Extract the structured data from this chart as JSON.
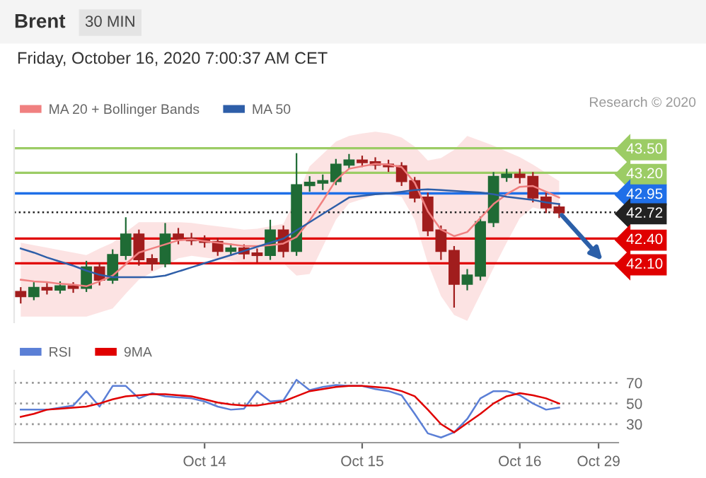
{
  "chart_data": [
    {
      "type": "candlestick",
      "title": "Brent",
      "subtitle": "30 MIN",
      "annotations": [
        "Friday, October 16, 2020 7:00:37 AM CET",
        "Research © 2020"
      ],
      "categories": [
        null,
        null,
        null,
        null,
        null,
        null,
        null,
        null,
        null,
        null,
        null,
        null,
        null,
        null,
        null,
        null,
        null,
        null,
        null,
        null,
        null,
        null,
        null,
        null,
        null,
        null,
        null,
        null,
        null,
        null,
        null,
        null,
        null,
        null,
        null,
        null,
        null,
        null,
        null,
        null,
        null,
        null,
        null,
        null,
        null,
        null
      ],
      "ohlc": [
        [
          41.75,
          41.8,
          41.62,
          41.7
        ],
        [
          41.7,
          41.86,
          41.66,
          41.8
        ],
        [
          41.8,
          41.85,
          41.73,
          41.78
        ],
        [
          41.78,
          41.87,
          41.74,
          41.82
        ],
        [
          41.82,
          41.86,
          41.75,
          41.8
        ],
        [
          41.8,
          42.12,
          41.76,
          42.05
        ],
        [
          42.05,
          42.1,
          41.84,
          41.9
        ],
        [
          41.9,
          42.26,
          41.86,
          42.2
        ],
        [
          42.2,
          42.65,
          42.15,
          42.45
        ],
        [
          42.45,
          42.5,
          42.08,
          42.15
        ],
        [
          42.15,
          42.2,
          42.02,
          42.1
        ],
        [
          42.1,
          42.58,
          42.06,
          42.45
        ],
        [
          42.45,
          42.52,
          42.34,
          42.4
        ],
        [
          42.4,
          42.46,
          42.33,
          42.38
        ],
        [
          42.38,
          42.43,
          42.3,
          42.36
        ],
        [
          42.36,
          42.4,
          42.2,
          42.25
        ],
        [
          42.25,
          42.33,
          42.2,
          42.28
        ],
        [
          42.28,
          42.32,
          42.16,
          42.22
        ],
        [
          42.22,
          42.27,
          42.12,
          42.2
        ],
        [
          42.2,
          42.62,
          42.15,
          42.5
        ],
        [
          42.5,
          42.55,
          42.18,
          42.25
        ],
        [
          42.25,
          43.43,
          42.2,
          43.05
        ],
        [
          43.05,
          43.15,
          42.98,
          43.08
        ],
        [
          43.08,
          43.17,
          43.0,
          43.1
        ],
        [
          43.1,
          43.36,
          43.06,
          43.3
        ],
        [
          43.3,
          43.42,
          43.26,
          43.35
        ],
        [
          43.35,
          43.4,
          43.28,
          43.33
        ],
        [
          43.33,
          43.38,
          43.25,
          43.3
        ],
        [
          43.3,
          43.35,
          43.22,
          43.28
        ],
        [
          43.28,
          43.32,
          43.05,
          43.1
        ],
        [
          43.1,
          43.14,
          42.85,
          42.9
        ],
        [
          42.9,
          42.95,
          42.44,
          42.5
        ],
        [
          42.5,
          42.55,
          42.15,
          42.25
        ],
        [
          42.25,
          42.3,
          41.57,
          41.85
        ],
        [
          41.85,
          42.02,
          41.78,
          41.95
        ],
        [
          41.95,
          42.66,
          41.9,
          42.6
        ],
        [
          42.6,
          43.2,
          42.55,
          43.15
        ],
        [
          43.15,
          43.24,
          43.1,
          43.18
        ],
        [
          43.18,
          43.24,
          43.08,
          43.15
        ],
        [
          43.15,
          43.2,
          42.85,
          42.9
        ],
        [
          42.9,
          42.95,
          42.72,
          42.78
        ],
        [
          42.78,
          42.82,
          42.66,
          42.72
        ],
        null,
        null,
        null,
        null
      ],
      "colors": [
        "#a11d1d",
        "#1f6b35",
        "#a11d1d",
        "#1f6b35",
        "#a11d1d",
        "#1f6b35",
        "#a11d1d",
        "#1f6b35",
        "#1f6b35",
        "#a11d1d",
        "#a11d1d",
        "#1f6b35",
        "#a11d1d",
        "#a11d1d",
        "#a11d1d",
        "#a11d1d",
        "#1f6b35",
        "#a11d1d",
        "#a11d1d",
        "#1f6b35",
        "#a11d1d",
        "#1f6b35",
        "#1f6b35",
        "#1f6b35",
        "#1f6b35",
        "#1f6b35",
        "#a11d1d",
        "#a11d1d",
        "#a11d1d",
        "#a11d1d",
        "#a11d1d",
        "#a11d1d",
        "#a11d1d",
        "#a11d1d",
        "#1f6b35",
        "#1f6b35",
        "#1f6b35",
        "#1f6b35",
        "#a11d1d",
        "#a11d1d",
        "#a11d1d",
        "#a11d1d",
        null,
        null,
        null,
        null
      ],
      "series": [
        {
          "type": "line",
          "name": "MA 20 + Bollinger Bands",
          "color": "#f08080",
          "values": [
            41.9,
            41.88,
            41.87,
            41.85,
            41.84,
            41.82,
            41.88,
            41.95,
            42.09,
            42.23,
            42.28,
            42.33,
            42.38,
            42.39,
            42.37,
            42.35,
            42.33,
            42.31,
            42.31,
            42.32,
            42.34,
            42.42,
            42.62,
            42.86,
            43.11,
            43.25,
            43.28,
            43.31,
            43.3,
            43.27,
            43.08,
            42.73,
            42.51,
            42.43,
            42.48,
            42.65,
            42.82,
            42.94,
            43.03,
            43.04,
            42.97,
            42.9,
            null,
            null,
            null,
            null
          ],
          "upper": [
            42.35,
            42.32,
            42.29,
            42.26,
            42.23,
            42.2,
            42.28,
            42.35,
            42.48,
            42.6,
            42.6,
            42.6,
            42.6,
            42.59,
            42.57,
            42.55,
            42.53,
            42.51,
            42.52,
            42.55,
            42.58,
            42.9,
            43.28,
            43.43,
            43.58,
            43.65,
            43.68,
            43.7,
            43.68,
            43.63,
            43.52,
            43.35,
            43.38,
            43.48,
            43.65,
            43.59,
            43.53,
            43.46,
            43.39,
            43.3,
            43.2,
            43.1,
            null,
            null,
            null,
            null
          ],
          "lower": [
            41.45,
            41.45,
            41.45,
            41.45,
            41.45,
            41.45,
            41.5,
            41.55,
            41.73,
            41.9,
            41.99,
            42.07,
            42.16,
            42.19,
            42.17,
            42.15,
            42.13,
            42.11,
            42.1,
            42.1,
            42.1,
            41.95,
            41.97,
            42.3,
            42.63,
            42.83,
            42.88,
            42.93,
            42.94,
            42.91,
            42.63,
            42.1,
            41.7,
            41.47,
            41.4,
            41.72,
            42.04,
            42.35,
            42.65,
            42.78,
            42.74,
            42.7,
            null,
            null,
            null,
            null
          ]
        },
        {
          "type": "line",
          "name": "MA 50",
          "color": "#2e5ea8",
          "values": [
            42.28,
            42.23,
            42.17,
            42.12,
            42.07,
            42.01,
            41.96,
            41.93,
            41.93,
            41.93,
            41.93,
            41.95,
            42.0,
            42.05,
            42.1,
            42.15,
            42.2,
            42.25,
            42.3,
            42.35,
            42.4,
            42.5,
            42.6,
            42.7,
            42.8,
            42.9,
            42.92,
            42.94,
            42.95,
            42.97,
            42.99,
            43.0,
            42.99,
            42.98,
            42.97,
            42.96,
            42.94,
            42.91,
            42.89,
            42.87,
            42.84,
            42.82,
            null,
            null,
            null,
            null
          ]
        }
      ],
      "ref_lines": [
        {
          "axis": "y",
          "value": 43.5,
          "color": "#9ccc65"
        },
        {
          "axis": "y",
          "value": 43.2,
          "color": "#9ccc65"
        },
        {
          "axis": "y",
          "value": 42.95,
          "color": "#1f6fe8"
        },
        {
          "axis": "y",
          "value": 42.72,
          "color": "#222222",
          "line_style": "dotted"
        },
        {
          "axis": "y",
          "value": 42.4,
          "color": "#e00000"
        },
        {
          "axis": "y",
          "value": 42.1,
          "color": "#e00000"
        }
      ],
      "ylim": [
        41.38,
        43.72
      ],
      "yticks": [
        {
          "value": 43.5,
          "label": "43.50"
        },
        {
          "value": 43.2,
          "label": "43.20"
        },
        {
          "value": 42.95,
          "label": "42.95"
        },
        {
          "value": 42.72,
          "label": "42.72"
        },
        {
          "value": 42.4,
          "label": "42.40"
        },
        {
          "value": 42.1,
          "label": "42.10"
        }
      ],
      "legend": "top left",
      "grid": false
    },
    {
      "type": "line",
      "categories": [
        null,
        null,
        null,
        null,
        null,
        null,
        null,
        null,
        null,
        null,
        null,
        null,
        null,
        null,
        "Oct 14",
        null,
        null,
        null,
        null,
        null,
        null,
        null,
        null,
        null,
        null,
        null,
        "Oct 15",
        null,
        null,
        null,
        null,
        null,
        null,
        null,
        null,
        null,
        null,
        null,
        "Oct 16",
        null,
        null,
        null,
        null,
        null,
        "Oct 29",
        null
      ],
      "series": [
        {
          "name": "RSI",
          "color": "#5b7fd6",
          "values": [
            44,
            44,
            44,
            46,
            48,
            62,
            47,
            67,
            67,
            55,
            60,
            57,
            56,
            55,
            52,
            47,
            44,
            45,
            62,
            52,
            53,
            73,
            63,
            66,
            68,
            67,
            67,
            64,
            62,
            58,
            40,
            21,
            17,
            22,
            35,
            55,
            62,
            62,
            58,
            50,
            44,
            46,
            null,
            null,
            null,
            null
          ]
        },
        {
          "name": "9MA",
          "color": "#e00000",
          "values": [
            37,
            40,
            44,
            45,
            46,
            47,
            50,
            54,
            57,
            58,
            59,
            59,
            58,
            57,
            54,
            51,
            49,
            48,
            48,
            50,
            52,
            57,
            62,
            64,
            66,
            67,
            67,
            66,
            65,
            62,
            57,
            44,
            30,
            22,
            31,
            40,
            50,
            57,
            60,
            58,
            55,
            50,
            null,
            null,
            null,
            null
          ]
        }
      ],
      "ylim": [
        12,
        82
      ],
      "yticks": [
        30,
        50,
        70
      ],
      "grid": "y",
      "legend": "top left"
    }
  ]
}
